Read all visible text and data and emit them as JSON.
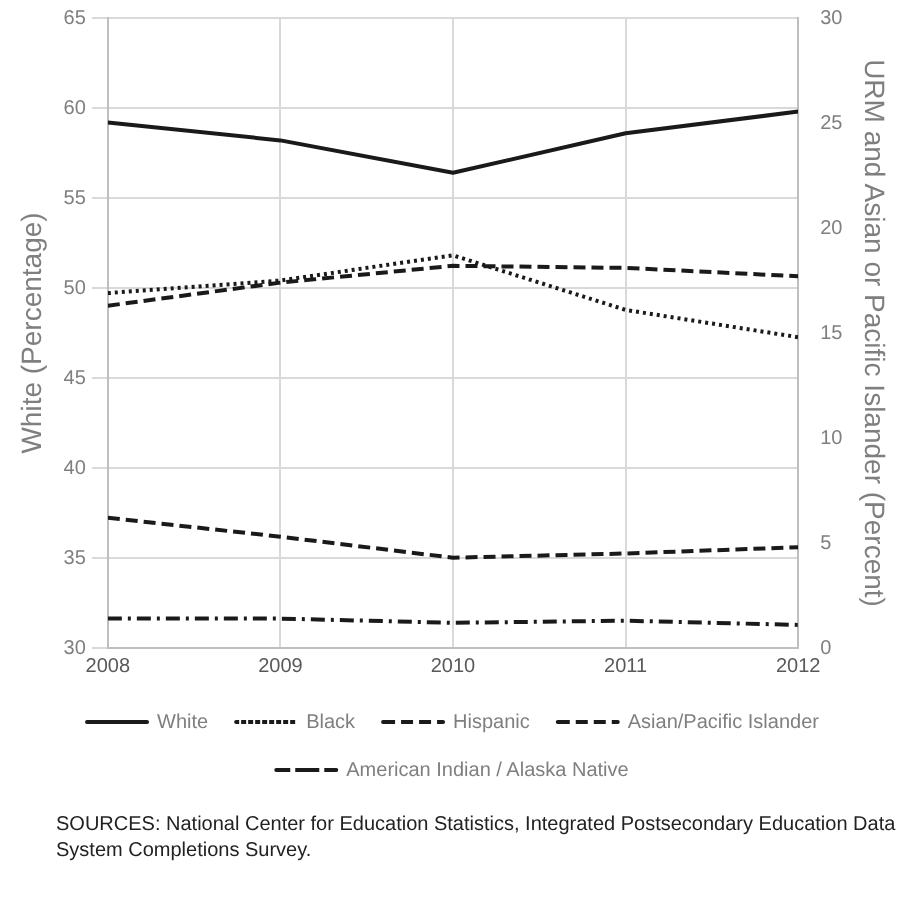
{
  "chart_data": {
    "type": "line",
    "x": [
      2008,
      2009,
      2010,
      2011,
      2012
    ],
    "xlim": [
      2008,
      2012
    ],
    "xticks": [
      2008,
      2009,
      2010,
      2011,
      2012
    ],
    "ylabel": "White (Percentage)",
    "y2label": "URM and Asian or Pacific Islander (Percent)",
    "ylim": [
      30,
      65
    ],
    "yticks": [
      30,
      35,
      40,
      45,
      50,
      55,
      60,
      65
    ],
    "y2lim": [
      0,
      30
    ],
    "y2ticks": [
      0,
      5,
      10,
      15,
      20,
      25,
      30
    ],
    "grid": true,
    "legend": "bottom",
    "marker": "none",
    "series": [
      {
        "name": "White",
        "color": "#1a1a1a",
        "line_style": "solid",
        "values": [
          59.2,
          58.2,
          56.4,
          58.6,
          59.8
        ]
      },
      {
        "name": "Black",
        "color": "#1a1a1a",
        "line_style": "dotted",
        "axis": "y2",
        "values": [
          16.9,
          17.5,
          18.7,
          16.1,
          14.8
        ]
      },
      {
        "name": "Hispanic",
        "color": "#1a1a1a",
        "line_style": "dashed",
        "axis": "y2",
        "values": [
          16.3,
          17.4,
          18.2,
          18.1,
          17.7
        ]
      },
      {
        "name": "Asian/Pacific Islander",
        "color": "#1a1a1a",
        "line_style": "dashed",
        "axis": "y2",
        "values": [
          6.2,
          5.3,
          4.3,
          4.5,
          4.8
        ]
      },
      {
        "name": "American Indian / Alaska Native",
        "color": "#1a1a1a",
        "line_style": "dashdot",
        "axis": "y2",
        "values": [
          1.4,
          1.4,
          1.2,
          1.3,
          1.1
        ]
      }
    ],
    "annotations": [
      "SOURCES: National Center for Education Statistics, Integrated Postsecondary Education Data System Completions Survey."
    ]
  }
}
